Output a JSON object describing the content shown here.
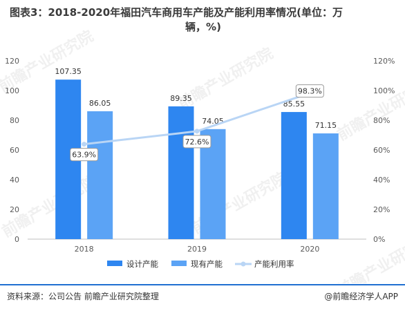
{
  "title_line1": "图表3：2018-2020年福田汽车商用车产能及产能利用率情况(单位：万",
  "title_line2": "辆，%)",
  "footer": {
    "source": "资料来源：公司公告 前瞻产业研究院整理",
    "brand": "@前瞻经济学人APP"
  },
  "watermark": "前瞻产业研究院",
  "colors": {
    "capacity": "#2e86f0",
    "existing": "#5ba3f5",
    "utilization": "#b9d5f5",
    "axis_text": "#595959",
    "grid": "#d9d9d9",
    "footer_rule": "#1f6fd1"
  },
  "chart_data": {
    "type": "bar",
    "categories": [
      "2018",
      "2019",
      "2020"
    ],
    "series": [
      {
        "name": "设计产能",
        "type": "bar",
        "values": [
          107.35,
          89.35,
          85.55
        ],
        "labels": [
          "107.35",
          "89.35",
          "85.55"
        ]
      },
      {
        "name": "现有产能",
        "type": "bar",
        "values": [
          86.05,
          74.05,
          71.15
        ],
        "labels": [
          "86.05",
          "74.05",
          "71.15"
        ]
      },
      {
        "name": "产能利用率",
        "type": "line",
        "axis": "right",
        "values": [
          63.9,
          72.6,
          98.3
        ],
        "labels": [
          "63.9%",
          "72.6%",
          "98.3%"
        ]
      }
    ],
    "y_left": {
      "min": 0,
      "max": 120,
      "step": 20,
      "ticks": [
        "0",
        "20",
        "40",
        "60",
        "80",
        "100",
        "120"
      ]
    },
    "y_right": {
      "min": 0,
      "max": 120,
      "step": 20,
      "ticks": [
        "0%",
        "20%",
        "40%",
        "60%",
        "80%",
        "100%",
        "120%"
      ]
    },
    "grid": false,
    "legend_position": "bottom"
  }
}
